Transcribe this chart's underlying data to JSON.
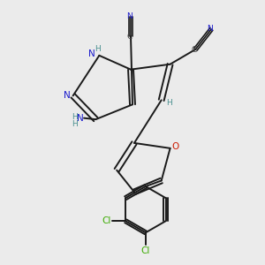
{
  "bg_color": "#ebebeb",
  "bond_color": "#1a1a1a",
  "n_color": "#1a1acc",
  "o_color": "#cc1a00",
  "cl_color": "#3aaa00",
  "h_color": "#4a9090",
  "c_color": "#404040",
  "figsize": [
    3.0,
    3.0
  ],
  "dpi": 100,
  "xlim": [
    0,
    10
  ],
  "ylim": [
    0,
    10
  ]
}
